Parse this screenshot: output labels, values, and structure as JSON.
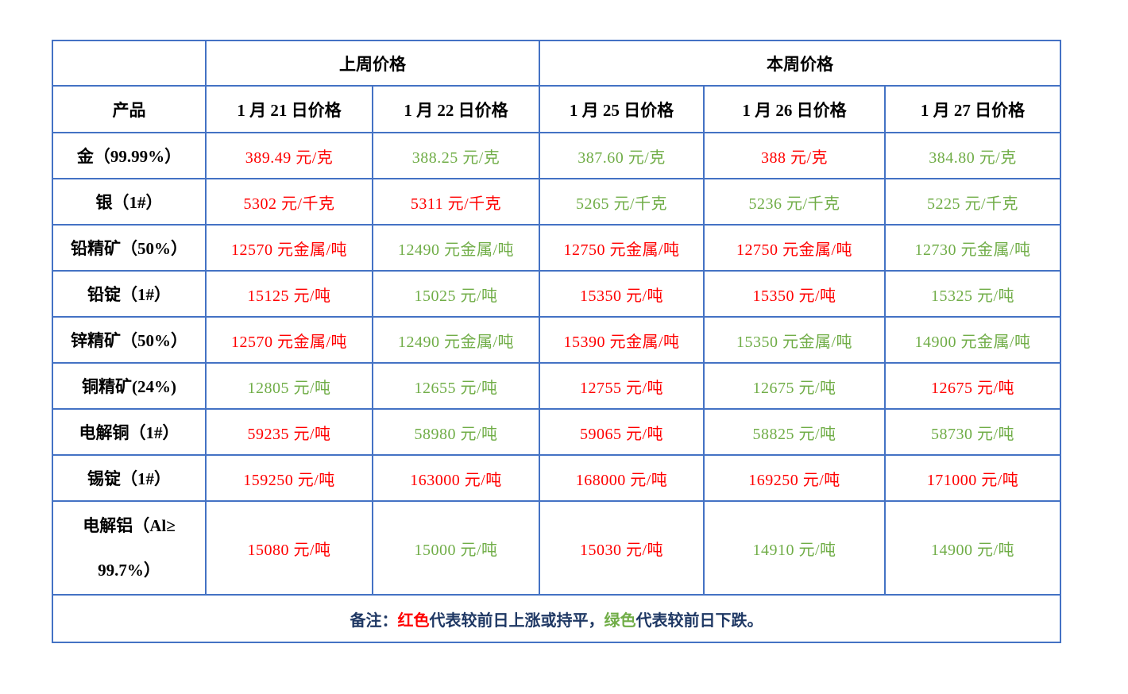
{
  "colors": {
    "up_or_flat": "#FF0000",
    "down": "#70AD47",
    "table_border": "#4472C4",
    "note_text": "#1F3864",
    "header_text": "#000000"
  },
  "table": {
    "header": {
      "product_label": "产品",
      "last_week_label": "上周价格",
      "this_week_label": "本周价格",
      "date_columns": [
        "1 月 21 日价格",
        "1 月 22 日价格",
        "1 月 25 日价格",
        "1 月 26 日价格",
        "1 月 27 日价格"
      ]
    },
    "rows": [
      {
        "product": "金（99.99%）",
        "prices": [
          {
            "text": "389.49 元/克",
            "trend": "up"
          },
          {
            "text": "388.25 元/克",
            "trend": "down"
          },
          {
            "text": "387.60 元/克",
            "trend": "down"
          },
          {
            "text": "388 元/克",
            "trend": "up"
          },
          {
            "text": "384.80 元/克",
            "trend": "down"
          }
        ]
      },
      {
        "product": "银（1#）",
        "prices": [
          {
            "text": "5302 元/千克",
            "trend": "up"
          },
          {
            "text": "5311 元/千克",
            "trend": "up"
          },
          {
            "text": "5265 元/千克",
            "trend": "down"
          },
          {
            "text": "5236 元/千克",
            "trend": "down"
          },
          {
            "text": "5225 元/千克",
            "trend": "down"
          }
        ]
      },
      {
        "product": "铅精矿（50%）",
        "prices": [
          {
            "text": "12570 元金属/吨",
            "trend": "up"
          },
          {
            "text": "12490 元金属/吨",
            "trend": "down"
          },
          {
            "text": "12750 元金属/吨",
            "trend": "up"
          },
          {
            "text": "12750 元金属/吨",
            "trend": "up"
          },
          {
            "text": "12730 元金属/吨",
            "trend": "down"
          }
        ]
      },
      {
        "product": "铅锭（1#）",
        "prices": [
          {
            "text": "15125 元/吨",
            "trend": "up"
          },
          {
            "text": "15025 元/吨",
            "trend": "down"
          },
          {
            "text": "15350 元/吨",
            "trend": "up"
          },
          {
            "text": "15350 元/吨",
            "trend": "up"
          },
          {
            "text": "15325 元/吨",
            "trend": "down"
          }
        ]
      },
      {
        "product": "锌精矿（50%）",
        "prices": [
          {
            "text": "12570 元金属/吨",
            "trend": "up"
          },
          {
            "text": "12490 元金属/吨",
            "trend": "down"
          },
          {
            "text": "15390 元金属/吨",
            "trend": "up"
          },
          {
            "text": "15350 元金属/吨",
            "trend": "down"
          },
          {
            "text": "14900 元金属/吨",
            "trend": "down"
          }
        ]
      },
      {
        "product": "铜精矿(24%)",
        "prices": [
          {
            "text": "12805 元/吨",
            "trend": "down"
          },
          {
            "text": "12655 元/吨",
            "trend": "down"
          },
          {
            "text": "12755 元/吨",
            "trend": "up"
          },
          {
            "text": "12675 元/吨",
            "trend": "down"
          },
          {
            "text": "12675 元/吨",
            "trend": "up"
          }
        ]
      },
      {
        "product": "电解铜（1#）",
        "prices": [
          {
            "text": "59235 元/吨",
            "trend": "up"
          },
          {
            "text": "58980 元/吨",
            "trend": "down"
          },
          {
            "text": "59065 元/吨",
            "trend": "up"
          },
          {
            "text": "58825 元/吨",
            "trend": "down"
          },
          {
            "text": "58730 元/吨",
            "trend": "down"
          }
        ]
      },
      {
        "product": "锡锭（1#）",
        "prices": [
          {
            "text": "159250 元/吨",
            "trend": "up"
          },
          {
            "text": "163000 元/吨",
            "trend": "up"
          },
          {
            "text": "168000 元/吨",
            "trend": "up"
          },
          {
            "text": "169250 元/吨",
            "trend": "up"
          },
          {
            "text": "171000 元/吨",
            "trend": "up"
          }
        ]
      },
      {
        "product": "电解铝（Al≥",
        "product_line2": "99.7%）",
        "tall": true,
        "prices": [
          {
            "text": "15080 元/吨",
            "trend": "up"
          },
          {
            "text": "15000 元/吨",
            "trend": "down"
          },
          {
            "text": "15030 元/吨",
            "trend": "up"
          },
          {
            "text": "14910 元/吨",
            "trend": "down"
          },
          {
            "text": "14900 元/吨",
            "trend": "down"
          }
        ]
      }
    ],
    "note_segments": [
      {
        "text": "备注：",
        "kind": "note"
      },
      {
        "text": "红色",
        "kind": "up"
      },
      {
        "text": "代表较前日上涨或持平，",
        "kind": "note"
      },
      {
        "text": "绿色",
        "kind": "down"
      },
      {
        "text": "代表较前日下跌。",
        "kind": "note"
      }
    ]
  }
}
